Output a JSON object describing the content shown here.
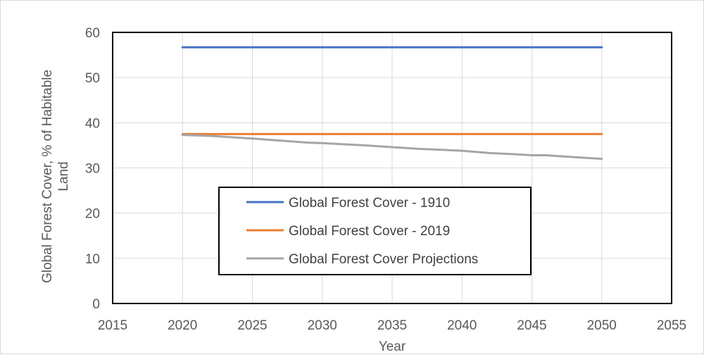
{
  "chart_data": {
    "type": "line",
    "xlabel": "Year",
    "ylabel": "Global Forest Cover, % of Habitable Land",
    "xlim": [
      2015,
      2055
    ],
    "ylim": [
      0,
      60
    ],
    "x_ticks": [
      2015,
      2020,
      2025,
      2030,
      2035,
      2040,
      2045,
      2050,
      2055
    ],
    "y_ticks": [
      0,
      10,
      20,
      30,
      40,
      50,
      60
    ],
    "grid": true,
    "legend_position": "center-left",
    "series": [
      {
        "name": "Global Forest Cover - 1910",
        "color": "#4472c4",
        "x": [
          2020,
          2050
        ],
        "y": [
          56.7,
          56.7
        ]
      },
      {
        "name": "Global Forest Cover - 2019",
        "color": "#ed7d31",
        "x": [
          2020,
          2050
        ],
        "y": [
          37.5,
          37.5
        ]
      },
      {
        "name": "Global Forest Cover Projections",
        "color": "#a5a5a5",
        "x": [
          2020,
          2022,
          2025,
          2029,
          2030,
          2033,
          2036,
          2037,
          2038,
          2040,
          2042,
          2044,
          2045,
          2046,
          2048,
          2050
        ],
        "y": [
          37.3,
          37.1,
          36.5,
          35.6,
          35.5,
          35.0,
          34.4,
          34.2,
          34.1,
          33.8,
          33.3,
          33.0,
          32.8,
          32.8,
          32.4,
          32.0
        ]
      }
    ]
  }
}
